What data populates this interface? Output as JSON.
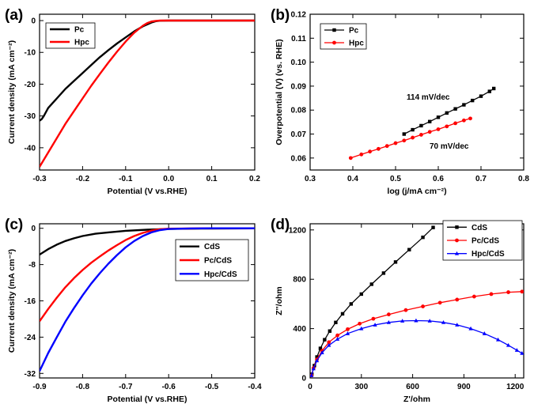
{
  "chart_data": [
    {
      "panel": "(a)",
      "type": "line",
      "xlabel": "Potential (V vs.RHE)",
      "ylabel": "Current density (mA cm⁻²)",
      "xlim": [
        -0.3,
        0.2
      ],
      "ylim": [
        -47,
        2
      ],
      "xticks": [
        -0.3,
        -0.2,
        -0.1,
        0.0,
        0.1,
        0.2
      ],
      "xtick_labels": [
        "-0.3",
        "-0.2",
        "-0.1",
        "0.0",
        "0.1",
        "0.2"
      ],
      "yticks": [
        0,
        -10,
        -20,
        -30,
        -40
      ],
      "ytick_labels": [
        "0",
        "-10",
        "-20",
        "-30",
        "-40"
      ],
      "legend_position": "top-left",
      "series": [
        {
          "name": "Pc",
          "color": "#000000",
          "x": [
            -0.3,
            -0.295,
            -0.29,
            -0.28,
            -0.27,
            -0.26,
            -0.25,
            -0.24,
            -0.22,
            -0.2,
            -0.18,
            -0.16,
            -0.14,
            -0.12,
            -0.1,
            -0.08,
            -0.06,
            -0.04,
            -0.03,
            -0.02,
            0.0,
            0.05,
            0.1,
            0.15,
            0.2
          ],
          "y": [
            -31.5,
            -31.0,
            -30.0,
            -27.5,
            -26.0,
            -24.5,
            -23.0,
            -21.5,
            -19.0,
            -16.5,
            -14.0,
            -11.5,
            -9.3,
            -7.2,
            -5.3,
            -3.4,
            -1.8,
            -0.6,
            -0.2,
            -0.05,
            0.0,
            0.0,
            0.0,
            0.0,
            0.0
          ]
        },
        {
          "name": "Hpc",
          "color": "#ff0000",
          "x": [
            -0.3,
            -0.28,
            -0.26,
            -0.24,
            -0.22,
            -0.2,
            -0.18,
            -0.16,
            -0.14,
            -0.12,
            -0.1,
            -0.08,
            -0.06,
            -0.05,
            -0.04,
            -0.03,
            -0.02,
            0.0,
            0.05,
            0.1,
            0.15,
            0.2
          ],
          "y": [
            -46.0,
            -41.5,
            -37.0,
            -32.5,
            -28.5,
            -24.5,
            -20.5,
            -16.8,
            -13.2,
            -9.8,
            -6.6,
            -3.8,
            -1.6,
            -0.8,
            -0.3,
            -0.1,
            0.0,
            0.0,
            0.0,
            0.0,
            0.0,
            0.0
          ]
        }
      ]
    },
    {
      "panel": "(b)",
      "type": "scatter",
      "xlabel": "log (j/mA cm⁻²)",
      "ylabel": "Overpotential (V) (vs. RHE)",
      "xlim": [
        0.3,
        0.8
      ],
      "ylim": [
        0.055,
        0.12
      ],
      "xticks": [
        0.3,
        0.4,
        0.5,
        0.6,
        0.7,
        0.8
      ],
      "xtick_labels": [
        "0.3",
        "0.4",
        "0.5",
        "0.6",
        "0.7",
        "0.8"
      ],
      "yticks": [
        0.06,
        0.07,
        0.08,
        0.09,
        0.1,
        0.11,
        0.12
      ],
      "ytick_labels": [
        "0.06",
        "0.07",
        "0.08",
        "0.09",
        "0.10",
        "0.11",
        "0.12"
      ],
      "legend_position": "top-left",
      "annotations": [
        "114 mV/dec",
        "70 mV/dec"
      ],
      "series": [
        {
          "name": "Pc",
          "color": "#000000",
          "marker": "square",
          "x": [
            0.52,
            0.54,
            0.56,
            0.58,
            0.6,
            0.62,
            0.64,
            0.66,
            0.68,
            0.7,
            0.72,
            0.73
          ],
          "y": [
            0.07,
            0.0718,
            0.0735,
            0.0752,
            0.077,
            0.0788,
            0.0805,
            0.0822,
            0.084,
            0.0858,
            0.0878,
            0.089
          ]
        },
        {
          "name": "Hpc",
          "color": "#ff0000",
          "marker": "circle",
          "x": [
            0.395,
            0.42,
            0.44,
            0.46,
            0.48,
            0.5,
            0.52,
            0.54,
            0.56,
            0.58,
            0.6,
            0.62,
            0.64,
            0.66,
            0.675
          ],
          "y": [
            0.06,
            0.0615,
            0.0627,
            0.0638,
            0.065,
            0.0662,
            0.0673,
            0.0685,
            0.0697,
            0.0709,
            0.072,
            0.0732,
            0.0745,
            0.0757,
            0.0765
          ]
        }
      ]
    },
    {
      "panel": "(c)",
      "type": "line",
      "xlabel": "Potential (V vs.RHE)",
      "ylabel": "Current density (mA cm⁻²)",
      "xlim": [
        -0.9,
        -0.4
      ],
      "ylim": [
        -33,
        1
      ],
      "xticks": [
        -0.9,
        -0.8,
        -0.7,
        -0.6,
        -0.5,
        -0.4
      ],
      "xtick_labels": [
        "-0.9",
        "-0.8",
        "-0.7",
        "-0.6",
        "-0.5",
        "-0.4"
      ],
      "yticks": [
        0,
        -8,
        -16,
        -24,
        -32
      ],
      "ytick_labels": [
        "0",
        "-8",
        "-16",
        "-24",
        "-32"
      ],
      "legend_position": "middle-right",
      "series": [
        {
          "name": "CdS",
          "color": "#000000",
          "x": [
            -0.9,
            -0.88,
            -0.86,
            -0.84,
            -0.82,
            -0.8,
            -0.77,
            -0.74,
            -0.7,
            -0.65,
            -0.6,
            -0.55,
            -0.5,
            -0.45,
            -0.4
          ],
          "y": [
            -5.8,
            -4.6,
            -3.6,
            -2.8,
            -2.2,
            -1.7,
            -1.2,
            -0.9,
            -0.55,
            -0.3,
            -0.15,
            -0.08,
            -0.04,
            -0.02,
            -0.01
          ]
        },
        {
          "name": "Pc/CdS",
          "color": "#ff0000",
          "x": [
            -0.9,
            -0.88,
            -0.86,
            -0.84,
            -0.82,
            -0.8,
            -0.78,
            -0.76,
            -0.74,
            -0.72,
            -0.7,
            -0.68,
            -0.66,
            -0.64,
            -0.62,
            -0.6,
            -0.55,
            -0.5,
            -0.45,
            -0.4
          ],
          "y": [
            -20.5,
            -17.8,
            -15.3,
            -13.0,
            -11.0,
            -9.2,
            -7.6,
            -6.2,
            -4.9,
            -3.7,
            -2.6,
            -1.7,
            -1.0,
            -0.5,
            -0.2,
            -0.08,
            -0.02,
            0.0,
            0.0,
            0.0
          ]
        },
        {
          "name": "Hpc/CdS",
          "color": "#0000ff",
          "x": [
            -0.9,
            -0.88,
            -0.86,
            -0.84,
            -0.82,
            -0.8,
            -0.78,
            -0.76,
            -0.74,
            -0.72,
            -0.7,
            -0.68,
            -0.66,
            -0.64,
            -0.62,
            -0.6,
            -0.55,
            -0.5,
            -0.45,
            -0.4
          ],
          "y": [
            -31.5,
            -27.5,
            -24.0,
            -20.6,
            -17.6,
            -14.8,
            -12.2,
            -9.9,
            -7.8,
            -5.9,
            -4.2,
            -2.8,
            -1.7,
            -0.9,
            -0.4,
            -0.15,
            -0.03,
            0.0,
            0.0,
            0.0
          ]
        }
      ]
    },
    {
      "panel": "(d)",
      "type": "scatter",
      "xlabel": "Z'/ohm",
      "ylabel": "Z''/ohm",
      "xlim": [
        0,
        1250
      ],
      "ylim": [
        0,
        1250
      ],
      "xticks": [
        0,
        300,
        600,
        900,
        1200
      ],
      "xtick_labels": [
        "0",
        "300",
        "600",
        "900",
        "1200"
      ],
      "yticks": [
        0,
        400,
        800,
        1200
      ],
      "ytick_labels": [
        "0",
        "400",
        "800",
        "1200"
      ],
      "legend_position": "top-right",
      "series": [
        {
          "name": "CdS",
          "color": "#000000",
          "marker": "square",
          "x": [
            10,
            25,
            40,
            60,
            85,
            115,
            150,
            190,
            240,
            300,
            360,
            430,
            500,
            580,
            660,
            720
          ],
          "y": [
            30,
            100,
            170,
            240,
            310,
            380,
            450,
            520,
            600,
            680,
            760,
            850,
            940,
            1040,
            1140,
            1220
          ]
        },
        {
          "name": "Pc/CdS",
          "color": "#ff0000",
          "marker": "circle",
          "x": [
            8,
            20,
            40,
            70,
            110,
            160,
            220,
            290,
            370,
            460,
            560,
            660,
            760,
            860,
            960,
            1060,
            1160,
            1240
          ],
          "y": [
            20,
            80,
            150,
            220,
            290,
            345,
            395,
            440,
            480,
            515,
            550,
            580,
            610,
            635,
            660,
            680,
            695,
            700
          ]
        },
        {
          "name": "Hpc/CdS",
          "color": "#0000ff",
          "marker": "triangle",
          "x": [
            8,
            20,
            40,
            70,
            110,
            160,
            220,
            300,
            380,
            460,
            540,
            620,
            700,
            780,
            860,
            940,
            1020,
            1100,
            1160,
            1210,
            1240
          ],
          "y": [
            20,
            75,
            140,
            205,
            265,
            315,
            360,
            400,
            430,
            450,
            462,
            465,
            462,
            450,
            430,
            400,
            360,
            310,
            265,
            225,
            200
          ]
        }
      ]
    }
  ]
}
